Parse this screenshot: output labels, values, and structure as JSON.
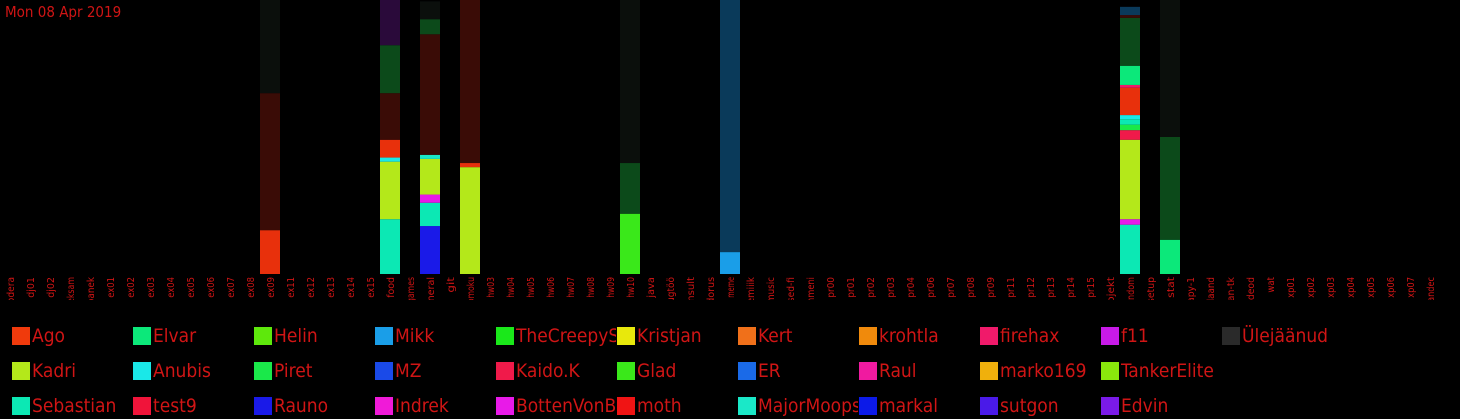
{
  "date_label": "Mon 08 Apr 2019",
  "colors": {
    "text": "#d01515",
    "background": "#000000",
    "other_bar": "#0b0f0c"
  },
  "chart_data": {
    "type": "bar",
    "stacked": true,
    "categories": [
      "codera",
      "dj01",
      "dj02",
      "eksam",
      "eltepanek",
      "ex01",
      "ex02",
      "ex03",
      "ex04",
      "ex05",
      "ex06",
      "ex07",
      "ex08",
      "ex09",
      "ex11",
      "ex12",
      "ex13",
      "ex14",
      "ex15",
      "food",
      "games",
      "general",
      "git",
      "gomoku",
      "hw03",
      "hw04",
      "hw05",
      "hw06",
      "hw07",
      "hw08",
      "hw09",
      "hw10",
      "java",
      "kaugtöö",
      "konsult",
      "koridorus",
      "meme",
      "mittemiiik",
      "music",
      "olulised-fi",
      "pehmeni",
      "pr00",
      "pr01",
      "pr02",
      "pr03",
      "pr04",
      "pr06",
      "pr07",
      "pr08",
      "pr09",
      "pr11",
      "pr12",
      "pr13",
      "pr14",
      "pr15",
      "projekt",
      "random",
      "setup",
      "stat",
      "syvapy-1",
      "teadaand",
      "vegan-tk",
      "videod",
      "wat",
      "xp01",
      "xp02",
      "xp03",
      "xp04",
      "xp05",
      "xp06",
      "xp07",
      "üldisandec"
    ],
    "ylim": [
      0,
      100
    ],
    "grid": false,
    "legend_position": "bottom",
    "series_colors": {
      "Ago": "#f03a0c",
      "Elvar": "#0ce87a",
      "Helin": "#5ee80c",
      "Mikk": "#1a9ee8",
      "TheCreepySh": "#1ae81a",
      "Kristjan": "#e8e80c",
      "Kert": "#f0701a",
      "krohtla": "#f08a0c",
      "firehax": "#f01a6a",
      "f11": "#c81ae8",
      "Ülejäänud": "#2a2a2a",
      "Kadri": "#b4e81a",
      "Anubis": "#1ae8e8",
      "Piret": "#1ae84a",
      "MZ": "#1a4ae8",
      "Kaido.K": "#f01a4a",
      "Glad": "#3ae81a",
      "ER": "#1a6ae8",
      "Raul": "#f01aa0",
      "marko169": "#f0b00c",
      "TankerElite": "#8ae80c",
      "Sebastian": "#0ce8b4",
      "test9": "#f0143a",
      "Rauno": "#1a1ae8",
      "Indrek": "#f01ad8",
      "BottenVonBot": "#e81ae8",
      "moth": "#f01414",
      "MajorMoopsy": "#1ae8c8",
      "markal": "#0c1ae8",
      "sutgon": "#4a1ae8",
      "Edvin": "#7a1ae8"
    },
    "bars": {
      "ex09": [
        {
          "v": 16,
          "c": "#e8300c"
        },
        {
          "v": 50,
          "c": "#3a0c06"
        },
        {
          "v": 34,
          "c": "#0b0f0c"
        }
      ],
      "food": [
        {
          "v": 20,
          "c": "#0ce8b4"
        },
        {
          "v": 21,
          "c": "#b4e81a"
        },
        {
          "v": 1.5,
          "c": "#1ae8e8"
        },
        {
          "v": 6.5,
          "c": "#e8300c"
        },
        {
          "v": 17,
          "c": "#3a0c06"
        },
        {
          "v": 17.5,
          "c": "#0c4a1a"
        },
        {
          "v": 16.5,
          "c": "#2a0a3a"
        }
      ],
      "general": [
        {
          "v": 17.5,
          "c": "#1a1ae8"
        },
        {
          "v": 8.5,
          "c": "#0ce8b4"
        },
        {
          "v": 3,
          "c": "#e81ae8"
        },
        {
          "v": 13,
          "c": "#b4e81a"
        },
        {
          "v": 1.5,
          "c": "#1ae8c8"
        },
        {
          "v": 44,
          "c": "#3a0c06"
        },
        {
          "v": 5.5,
          "c": "#0c4a1a"
        },
        {
          "v": 6.5,
          "c": "#0b0f0c"
        }
      ],
      "gomoku": [
        {
          "v": 39,
          "c": "#b4e81a"
        },
        {
          "v": 1.5,
          "c": "#e8300c"
        },
        {
          "v": 59.5,
          "c": "#3a0c06"
        }
      ],
      "hw10": [
        {
          "v": 22,
          "c": "#3ae81a"
        },
        {
          "v": 18.5,
          "c": "#0c4a1a"
        },
        {
          "v": 59.5,
          "c": "#0b0f0c"
        }
      ],
      "meme": [
        {
          "v": 8,
          "c": "#1a9ee8"
        },
        {
          "v": 92,
          "c": "#0a3a5a"
        }
      ],
      "random": [
        {
          "v": 18,
          "c": "#0ce8b4"
        },
        {
          "v": 2,
          "c": "#e81ae8"
        },
        {
          "v": 29,
          "c": "#b4e81a"
        },
        {
          "v": 3.5,
          "c": "#f01a4a"
        },
        {
          "v": 2,
          "c": "#1ae84a"
        },
        {
          "v": 2,
          "c": "#0ce8b4"
        },
        {
          "v": 1.5,
          "c": "#1ae8e8"
        },
        {
          "v": 10,
          "c": "#e8300c"
        },
        {
          "v": 1,
          "c": "#f01a6a"
        },
        {
          "v": 7,
          "c": "#0ce87a"
        },
        {
          "v": 17.5,
          "c": "#0c4a1a"
        },
        {
          "v": 1,
          "c": "#3a0c06"
        },
        {
          "v": 3,
          "c": "#0a3a5a"
        }
      ],
      "stat": [
        {
          "v": 12.5,
          "c": "#0ce87a"
        },
        {
          "v": 37.5,
          "c": "#0c4a1a"
        },
        {
          "v": 50,
          "c": "#0b0f0c"
        }
      ]
    }
  },
  "legend": [
    [
      "Ago",
      "Elvar",
      "Helin",
      "Mikk",
      "TheCreepySh",
      "Kristjan",
      "Kert",
      "krohtla",
      "firehax",
      "f11",
      "Ülejäänud"
    ],
    [
      "Kadri",
      "Anubis",
      "Piret",
      "MZ",
      "Kaido.K",
      "Glad",
      "ER",
      "Raul",
      "marko169",
      "TankerElite"
    ],
    [
      "Sebastian",
      "test9",
      "Rauno",
      "Indrek",
      "BottenVonBot",
      "moth",
      "MajorMoopsy",
      "markal",
      "sutgon",
      "Edvin"
    ]
  ]
}
